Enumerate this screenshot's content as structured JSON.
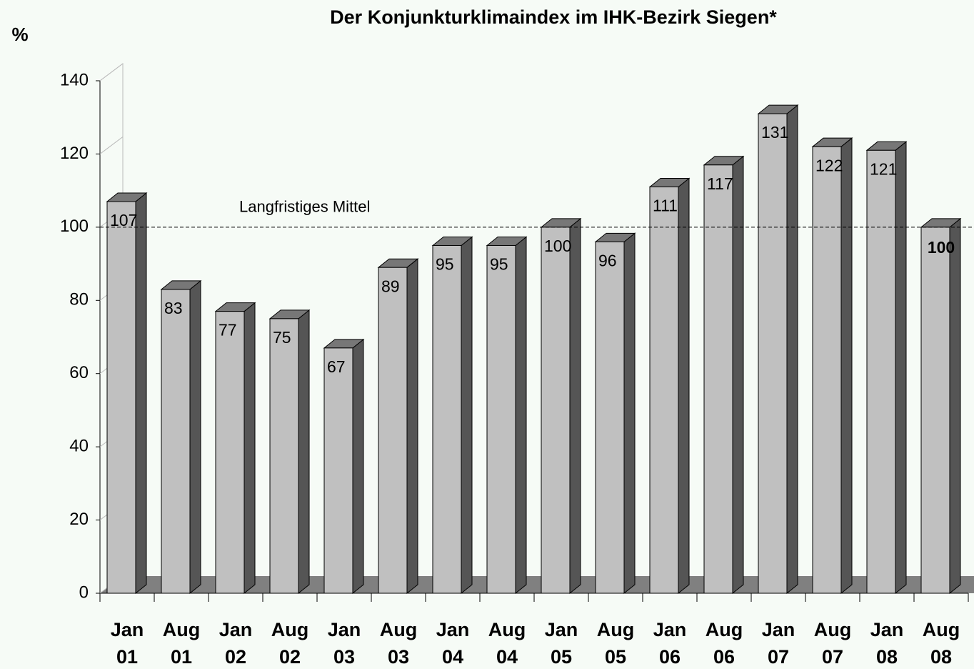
{
  "chart_data": {
    "type": "bar3d",
    "title": "Der Konjunkturklimaindex im IHK-Bezirk Siegen*",
    "y_label": "%",
    "categories": [
      [
        "Jan",
        "01"
      ],
      [
        "Aug",
        "01"
      ],
      [
        "Jan",
        "02"
      ],
      [
        "Aug",
        "02"
      ],
      [
        "Jan",
        "03"
      ],
      [
        "Aug",
        "03"
      ],
      [
        "Jan",
        "04"
      ],
      [
        "Aug",
        "04"
      ],
      [
        "Jan",
        "05"
      ],
      [
        "Aug",
        "05"
      ],
      [
        "Jan",
        "06"
      ],
      [
        "Aug",
        "06"
      ],
      [
        "Jan",
        "07"
      ],
      [
        "Aug",
        "07"
      ],
      [
        "Jan",
        "08"
      ],
      [
        "Aug",
        "08"
      ]
    ],
    "values": [
      107,
      83,
      77,
      75,
      67,
      89,
      95,
      95,
      100,
      96,
      111,
      117,
      131,
      122,
      121,
      100
    ],
    "color": "#c0c0c0",
    "ylim": [
      0,
      140
    ],
    "yticks": [
      0,
      20,
      40,
      60,
      80,
      100,
      120,
      140
    ],
    "reference_line": {
      "value": 100,
      "label": "Langfristiges Mittel"
    }
  }
}
